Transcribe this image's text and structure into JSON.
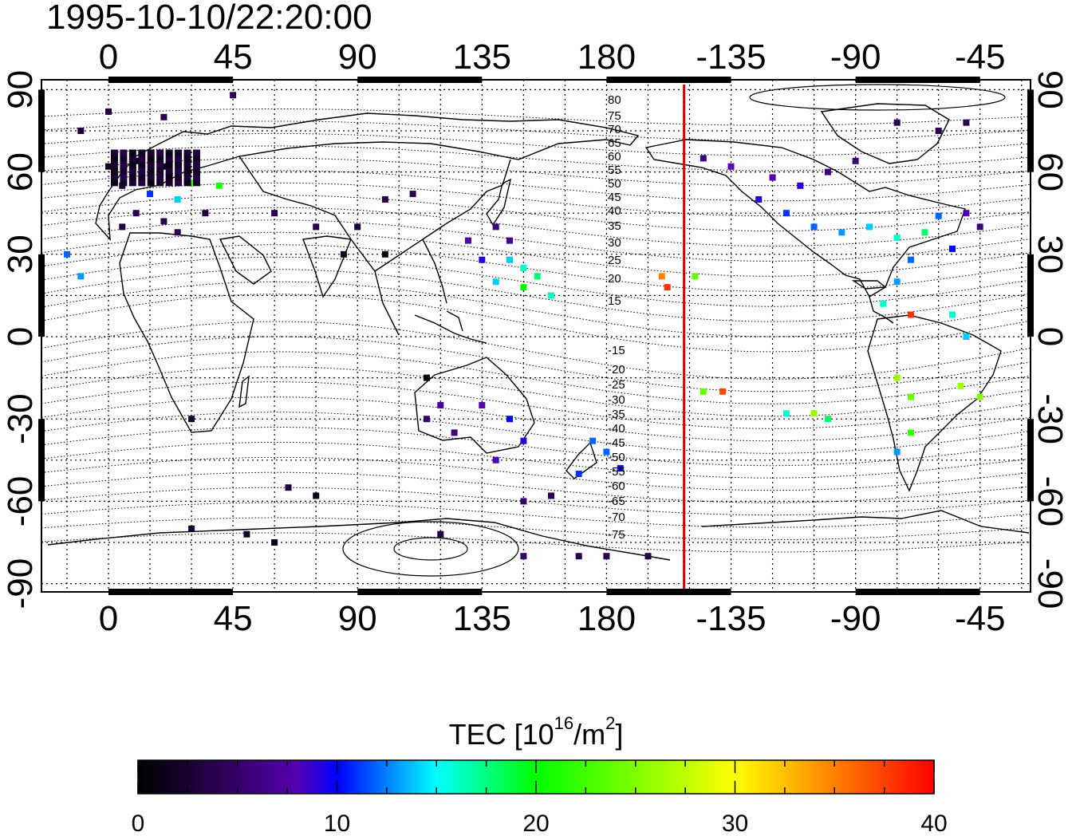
{
  "timestamp": "1995-10-10/22:20:00",
  "map": {
    "top_lon_labels": [
      "0",
      "45",
      "90",
      "135",
      "180",
      "-135",
      "-90",
      "-45"
    ],
    "bottom_lon_labels": [
      "0",
      "45",
      "90",
      "135",
      "180",
      "-135",
      "-90",
      "-45"
    ],
    "left_lat_labels": [
      "90",
      "60",
      "30",
      "0",
      "-30",
      "-60",
      "-90"
    ],
    "right_lat_labels": [
      "90",
      "60",
      "30",
      "0",
      "-30",
      "-60",
      "-90"
    ],
    "contour_labels": [
      "80",
      "75",
      "70",
      "65",
      "60",
      "55",
      "50",
      "45",
      "40",
      "35",
      "30",
      "25",
      "20",
      "15",
      "-15",
      "-20",
      "-25",
      "-30",
      "-35",
      "-40",
      "-45",
      "-50",
      "-55",
      "-60",
      "-65",
      "-70",
      "-75"
    ],
    "terminator_color": "#e00000",
    "terminator_lon": -152
  },
  "colorbar": {
    "title_prefix": "TEC  [10",
    "title_exp": "16",
    "title_mid": "/m",
    "title_exp2": "2",
    "title_suffix": "]",
    "ticks": [
      "0",
      "10",
      "20",
      "30",
      "40"
    ],
    "min": 0,
    "max": 40
  },
  "tec_points": [
    [
      0,
      62,
      1
    ],
    [
      10,
      64,
      1
    ],
    [
      20,
      62,
      2
    ],
    [
      5,
      55,
      3
    ],
    [
      15,
      52,
      11
    ],
    [
      25,
      50,
      14
    ],
    [
      30,
      56,
      22
    ],
    [
      40,
      55,
      21
    ],
    [
      10,
      45,
      4
    ],
    [
      20,
      42,
      4
    ],
    [
      5,
      40,
      3
    ],
    [
      25,
      38,
      4
    ],
    [
      -15,
      30,
      12
    ],
    [
      -10,
      22,
      13
    ],
    [
      35,
      45,
      3
    ],
    [
      60,
      45,
      4
    ],
    [
      75,
      40,
      4
    ],
    [
      90,
      40,
      3
    ],
    [
      100,
      50,
      4
    ],
    [
      110,
      52,
      4
    ],
    [
      100,
      30,
      1
    ],
    [
      85,
      30,
      2
    ],
    [
      130,
      35,
      8
    ],
    [
      140,
      40,
      6
    ],
    [
      145,
      35,
      7
    ],
    [
      135,
      28,
      9
    ],
    [
      145,
      28,
      14
    ],
    [
      150,
      25,
      16
    ],
    [
      155,
      22,
      18
    ],
    [
      140,
      20,
      14
    ],
    [
      150,
      18,
      20
    ],
    [
      160,
      15,
      16
    ],
    [
      200,
      22,
      35
    ],
    [
      202,
      18,
      38
    ],
    [
      212,
      22,
      24
    ],
    [
      215,
      65,
      6
    ],
    [
      225,
      62,
      8
    ],
    [
      240,
      58,
      8
    ],
    [
      250,
      55,
      9
    ],
    [
      260,
      60,
      6
    ],
    [
      270,
      64,
      6
    ],
    [
      285,
      78,
      4
    ],
    [
      300,
      75,
      4
    ],
    [
      310,
      78,
      4
    ],
    [
      235,
      50,
      9
    ],
    [
      245,
      45,
      11
    ],
    [
      255,
      40,
      12
    ],
    [
      265,
      38,
      13
    ],
    [
      275,
      40,
      14
    ],
    [
      285,
      36,
      16
    ],
    [
      295,
      38,
      18
    ],
    [
      300,
      44,
      12
    ],
    [
      310,
      45,
      8
    ],
    [
      315,
      40,
      6
    ],
    [
      305,
      32,
      10
    ],
    [
      290,
      28,
      12
    ],
    [
      285,
      20,
      13
    ],
    [
      280,
      12,
      16
    ],
    [
      290,
      8,
      38
    ],
    [
      305,
      8,
      16
    ],
    [
      310,
      0,
      14
    ],
    [
      285,
      -15,
      26
    ],
    [
      290,
      -22,
      24
    ],
    [
      308,
      -18,
      26
    ],
    [
      315,
      -22,
      25
    ],
    [
      290,
      -35,
      22
    ],
    [
      285,
      -42,
      13
    ],
    [
      215,
      -20,
      24
    ],
    [
      222,
      -20,
      37
    ],
    [
      245,
      -28,
      16
    ],
    [
      255,
      -28,
      26
    ],
    [
      260,
      -30,
      18
    ],
    [
      115,
      -15,
      1
    ],
    [
      120,
      -25,
      7
    ],
    [
      115,
      -30,
      5
    ],
    [
      125,
      -35,
      6
    ],
    [
      135,
      -25,
      8
    ],
    [
      145,
      -30,
      10
    ],
    [
      150,
      -38,
      9
    ],
    [
      140,
      -45,
      8
    ],
    [
      175,
      -38,
      12
    ],
    [
      180,
      -42,
      12
    ],
    [
      185,
      -48,
      10
    ],
    [
      170,
      -50,
      11
    ],
    [
      30,
      -30,
      2
    ],
    [
      65,
      -55,
      3
    ],
    [
      75,
      -58,
      1
    ],
    [
      150,
      -60,
      5
    ],
    [
      160,
      -58,
      4
    ],
    [
      30,
      -70,
      2
    ],
    [
      50,
      -72,
      2
    ],
    [
      60,
      -75,
      1
    ],
    [
      120,
      -72,
      3
    ],
    [
      150,
      -80,
      5
    ],
    [
      170,
      -80,
      4
    ],
    [
      180,
      -80,
      4
    ],
    [
      195,
      -80,
      3
    ],
    [
      0,
      82,
      3
    ],
    [
      45,
      88,
      4
    ],
    [
      -10,
      75,
      3
    ],
    [
      20,
      80,
      4
    ]
  ]
}
